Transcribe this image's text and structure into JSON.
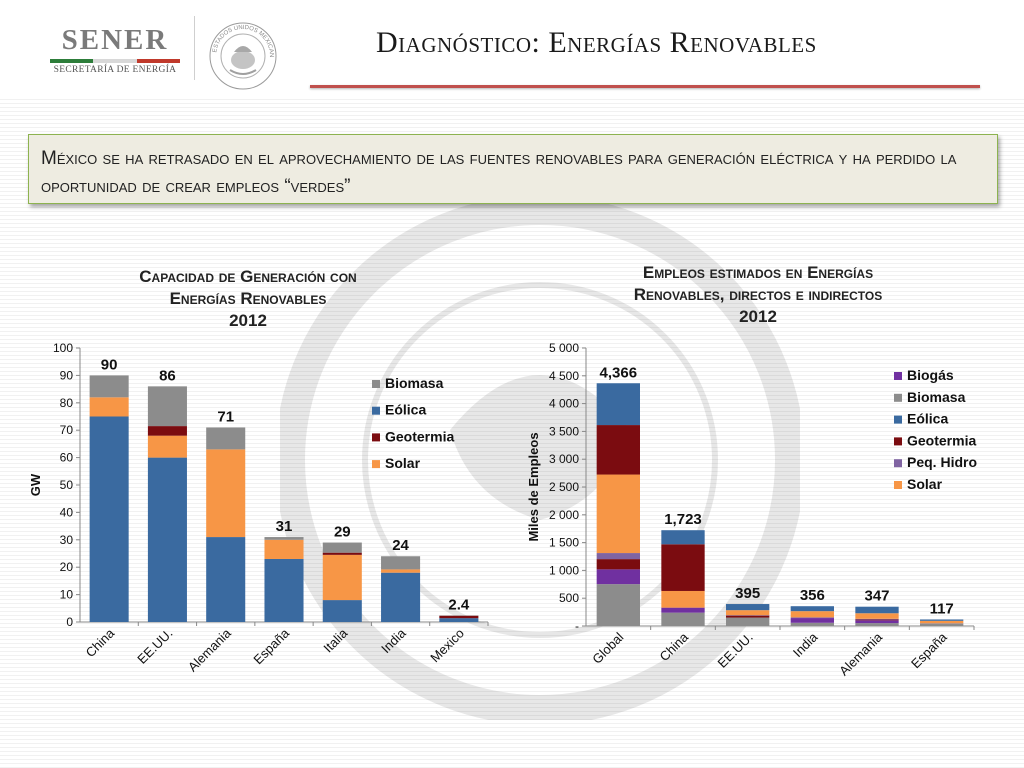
{
  "header": {
    "logo_name": "SENER",
    "logo_subtitle": "SECRETARÍA DE ENERGÍA",
    "seal_text": "ESTADOS UNIDOS MEXICANOS",
    "title": "Diagnóstico: Energías Renovables"
  },
  "callout": {
    "text": "México se ha retrasado en el aprovechamiento de las fuentes renovables para generación eléctrica y ha perdido la oportunidad de crear empleos “verdes”"
  },
  "colors": {
    "biomasa": "#8c8c8c",
    "eolica": "#3a6aa0",
    "geotermia": "#7b0c10",
    "solar": "#f79646",
    "biogas": "#7030a0",
    "peq_hidro": "#8064a2",
    "accent": "#c0504d",
    "callout_border": "#8db34f"
  },
  "chart_data": [
    {
      "type": "bar",
      "stacked": true,
      "title_line1": "Capacidad de Generación con",
      "title_line2": "Energías Renovables",
      "title_year": "2012",
      "ylabel": "GW",
      "ylim": [
        0,
        100
      ],
      "yticks": [
        "0",
        "10",
        "20",
        "30",
        "40",
        "50",
        "60",
        "70",
        "80",
        "90",
        "100"
      ],
      "categories": [
        "China",
        "EE.UU.",
        "Alemania",
        "España",
        "Italia",
        "India",
        "Mexico"
      ],
      "totals": [
        "90",
        "86",
        "71",
        "31",
        "29",
        "24",
        "2.4"
      ],
      "series": [
        {
          "name": "Eólica",
          "color_key": "eolica",
          "values": [
            75,
            60,
            31,
            23,
            8,
            18,
            1.4
          ]
        },
        {
          "name": "Solar",
          "color_key": "solar",
          "values": [
            7,
            8,
            32,
            7,
            16.5,
            1.2,
            0
          ]
        },
        {
          "name": "Geotermia",
          "color_key": "geotermia",
          "values": [
            0,
            3.5,
            0,
            0,
            0.8,
            0,
            0.9
          ]
        },
        {
          "name": "Biomasa",
          "color_key": "biomasa",
          "values": [
            8,
            14.5,
            8,
            1,
            3.7,
            4.8,
            0.1
          ]
        }
      ],
      "legend": [
        "Biomasa",
        "Eólica",
        "Geotermia",
        "Solar"
      ],
      "legend_keys": [
        "biomasa",
        "eolica",
        "geotermia",
        "solar"
      ],
      "legend_position": "right"
    },
    {
      "type": "bar",
      "stacked": true,
      "title_line1": "Empleos estimados en Energías",
      "title_line2": "Renovables, directos e indirectos",
      "title_year": "2012",
      "ylabel": "Miles de Empleos",
      "ylim": [
        0,
        5000
      ],
      "yticks": [
        "-",
        "500",
        "1 000",
        "1 500",
        "2 000",
        "2 500",
        "3 000",
        "3 500",
        "4 000",
        "4 500",
        "5 000"
      ],
      "categories": [
        "Global",
        "China",
        "EE.UU.",
        "India",
        "Alemania",
        "España"
      ],
      "totals": [
        "4,366",
        "1,723",
        "395",
        "356",
        "347",
        "117"
      ],
      "series": [
        {
          "name": "Biomasa",
          "color_key": "biomasa",
          "values": [
            753,
            240,
            152,
            58,
            52,
            44
          ]
        },
        {
          "name": "Biogás",
          "color_key": "biogas",
          "values": [
            266,
            90,
            0,
            85,
            50,
            0
          ]
        },
        {
          "name": "Geotermia",
          "color_key": "geotermia",
          "values": [
            184,
            0,
            35,
            0,
            14,
            0
          ]
        },
        {
          "name": "Peq. Hidro",
          "color_key": "peq_hidro",
          "values": [
            109,
            0,
            8,
            12,
            13,
            5
          ]
        },
        {
          "name": "Solar",
          "color_key": "solar",
          "values": [
            1412,
            300,
            90,
            112,
            100,
            44
          ]
        },
        {
          "name": "Geotermia",
          "color_key": "geotermia",
          "values": [
            890,
            840,
            0,
            0,
            0,
            0
          ]
        },
        {
          "name": "Eólica",
          "color_key": "eolica",
          "values": [
            752,
            253,
            110,
            89,
            118,
            24
          ]
        }
      ],
      "legend": [
        "Biogás",
        "Biomasa",
        "Eólica",
        "Geotermia",
        "Peq. Hidro",
        "Solar"
      ],
      "legend_keys": [
        "biogas",
        "biomasa",
        "eolica",
        "geotermia",
        "peq_hidro",
        "solar"
      ],
      "legend_position": "right"
    }
  ]
}
